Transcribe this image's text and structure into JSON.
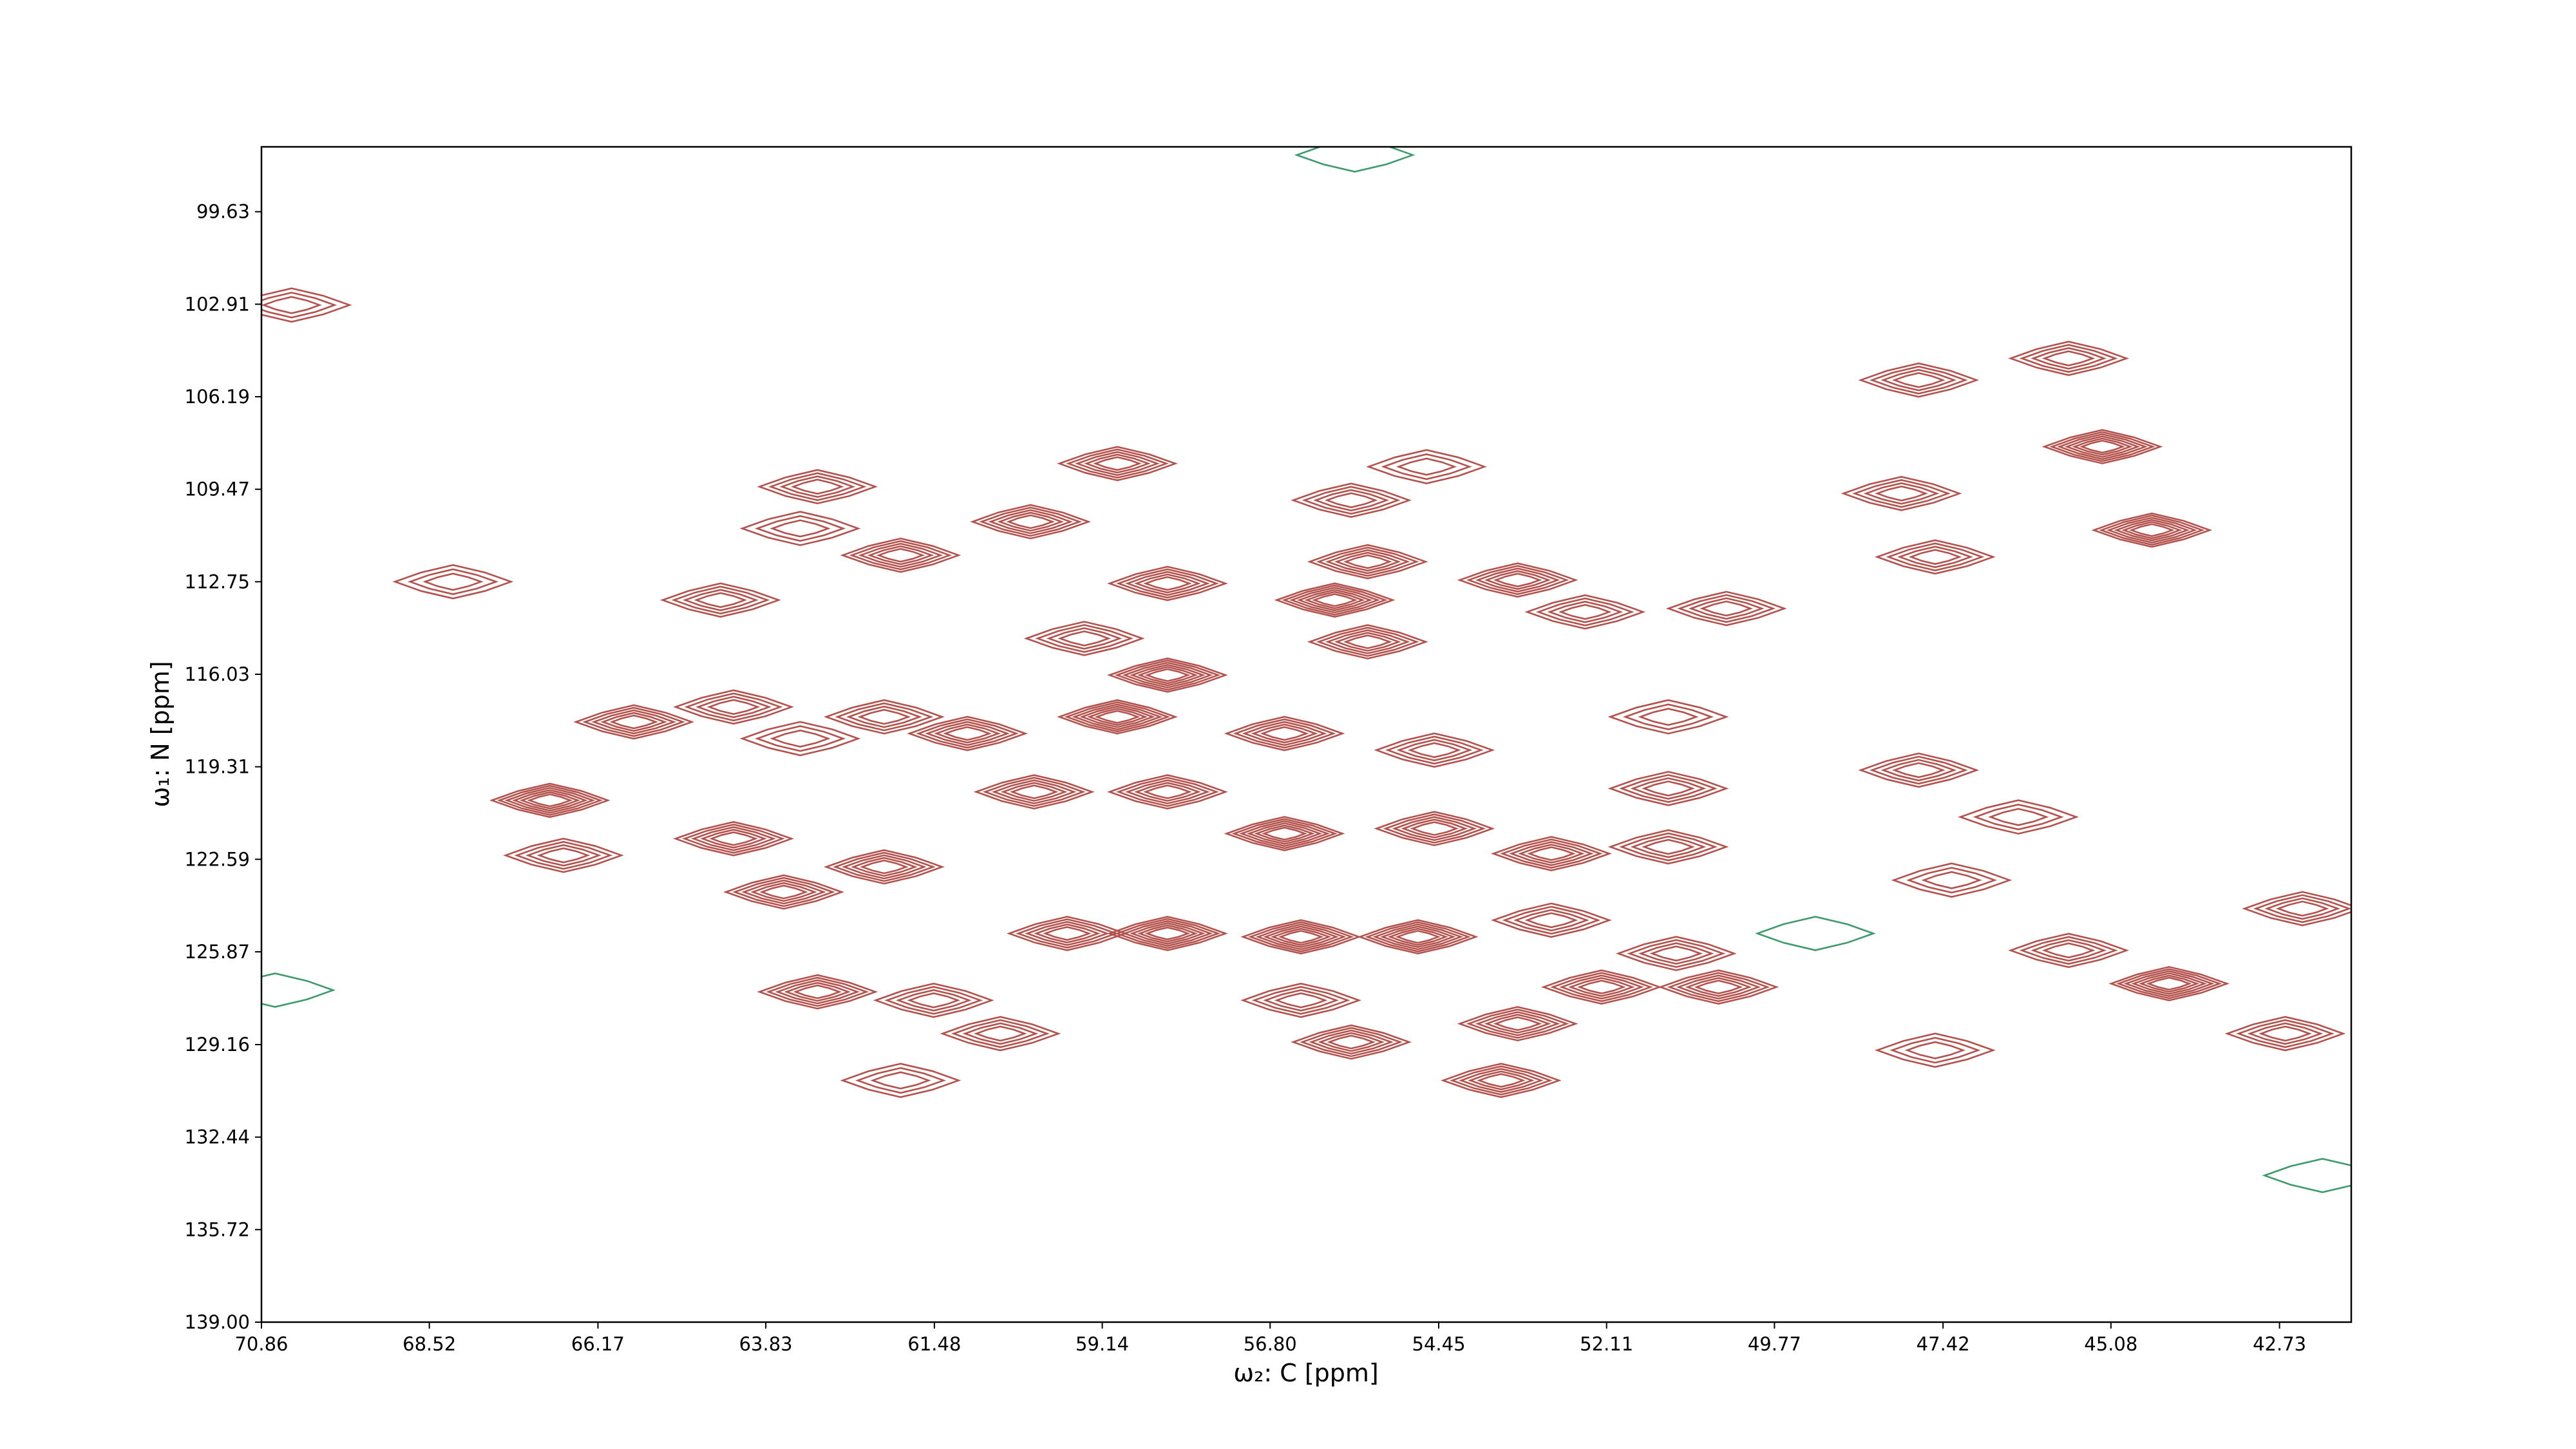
{
  "chart_data": {
    "type": "contour",
    "x_label": "ω₂: C [ppm]",
    "y_label": "ω₁: N [ppm]",
    "xlim": [
      70.86,
      41.73
    ],
    "ylim": [
      139.0,
      97.33
    ],
    "xticks": [
      70.86,
      68.52,
      66.17,
      63.83,
      61.48,
      59.14,
      {
        "value": 56.8,
        "label": "56.80"
      },
      54.45,
      52.11,
      49.77,
      47.42,
      45.08,
      42.73
    ],
    "yticks": [
      99.63,
      102.91,
      106.19,
      109.47,
      112.75,
      116.03,
      119.31,
      122.59,
      125.87,
      129.16,
      132.44,
      135.72,
      {
        "value": 139,
        "label": "139.00"
      }
    ],
    "series": [
      {
        "color": "#b3514c",
        "x": [
          47.76,
          45.2,
          45.67,
          48.0,
          44.51,
          47.53,
          42.65,
          44.27,
          42.41,
          45.67,
          47.53,
          47.76,
          51.25,
          51.25,
          50.55,
          52.18,
          51.14,
          53.35,
          53.58,
          52.41,
          53.35,
          50.44,
          51.25,
          55.67,
          54.62,
          58.93,
          63.11,
          63.35,
          60.14,
          61.95,
          64.46,
          55.44,
          55.9,
          59.39,
          55.44,
          58.23,
          64.28,
          63.35,
          65.67,
          66.84,
          66.65,
          64.28,
          62.18,
          63.58,
          62.18,
          59.63,
          58.23,
          56.37,
          54.74,
          52.88,
          52.88,
          54.51,
          56.6,
          58.23,
          60.09,
          61.02,
          58.93,
          56.6,
          63.11,
          61.49,
          60.56,
          55.67,
          56.37,
          61.95,
          70.44,
          68.19,
          54.51,
          58.23,
          46.37,
          47.3
        ],
        "y": [
          105.6,
          107.96,
          104.83,
          109.62,
          110.92,
          111.87,
          128.77,
          127.0,
          124.34,
          125.82,
          129.36,
          119.43,
          120.08,
          122.15,
          127.12,
          127.12,
          125.93,
          128.42,
          130.43,
          113.82,
          112.69,
          113.7,
          117.54,
          109.86,
          108.67,
          108.56,
          109.38,
          110.86,
          110.62,
          111.81,
          113.4,
          112.04,
          113.4,
          114.76,
          114.88,
          116.06,
          117.19,
          118.31,
          117.72,
          120.5,
          122.45,
          121.86,
          117.54,
          123.75,
          122.86,
          125.22,
          125.22,
          125.34,
          125.34,
          124.75,
          122.39,
          121.5,
          121.68,
          120.2,
          120.2,
          118.13,
          117.54,
          118.13,
          127.29,
          127.59,
          128.77,
          129.07,
          127.59,
          130.43,
          102.94,
          112.75,
          118.72,
          112.81,
          121.09,
          123.33
        ],
        "values": [
          4,
          6,
          4,
          4,
          6,
          4,
          4,
          6,
          4,
          4,
          3,
          4,
          4,
          4,
          5,
          5,
          4,
          5,
          5,
          4,
          5,
          4,
          3,
          4,
          3,
          5,
          4,
          3,
          5,
          5,
          4,
          5,
          6,
          4,
          5,
          6,
          4,
          3,
          5,
          6,
          4,
          5,
          4,
          5,
          5,
          5,
          6,
          6,
          6,
          4,
          5,
          5,
          6,
          5,
          5,
          5,
          6,
          5,
          5,
          4,
          4,
          5,
          4,
          3,
          3,
          3,
          4,
          5,
          3,
          3
        ]
      },
      {
        "color": "#3c9a6c",
        "x": [
          55.62,
          70.67,
          42.13,
          49.2
        ],
        "y": [
          97.62,
          127.23,
          133.8,
          125.22
        ],
        "values": [
          1,
          1,
          1,
          1
        ]
      }
    ]
  }
}
